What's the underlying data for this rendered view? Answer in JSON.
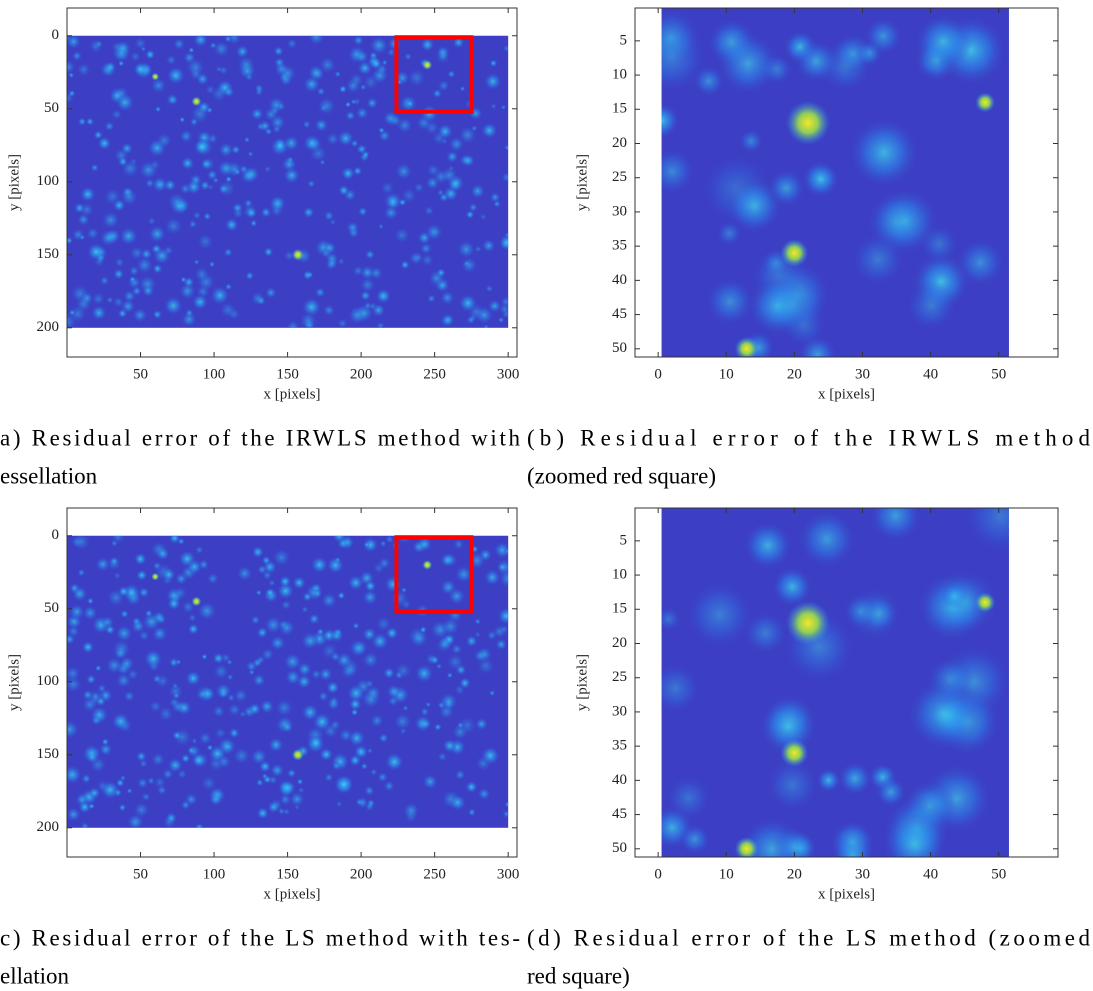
{
  "chart_data": [
    {
      "type": "heatmap",
      "xlabel": "x [pixels]",
      "ylabel": "y [pixels]",
      "xlim": [
        0,
        306
      ],
      "ylim": [
        -19,
        220
      ],
      "xticks": [
        50,
        100,
        150,
        200,
        250,
        300
      ],
      "yticks": [
        0,
        50,
        100,
        150,
        200
      ],
      "extent": {
        "x": [
          0,
          300
        ],
        "y": [
          0,
          200
        ]
      },
      "highlight": [
        224,
        1,
        275,
        52
      ],
      "highlight_color": "#ff0000",
      "color": "#3c3ec4",
      "caption": [
        "a) Residual error of the IRWLS method with",
        "essellation"
      ]
    },
    {
      "type": "heatmap",
      "xlabel": "x [pixels]",
      "ylabel": "y [pixels]",
      "xlim": [
        -3.4,
        58.7
      ],
      "ylim": [
        0.2,
        51.2
      ],
      "xticks": [
        0,
        10,
        20,
        30,
        40,
        50
      ],
      "yticks": [
        5,
        10,
        15,
        20,
        25,
        30,
        35,
        40,
        45,
        50
      ],
      "extent": {
        "x": [
          0.5,
          51.5
        ],
        "y": [
          0.2,
          51.2
        ]
      },
      "color": "#3c3ec4",
      "caption": [
        "(b) Residual error of the IRWLS method",
        "(zoomed red square)"
      ]
    },
    {
      "type": "heatmap",
      "xlabel": "x [pixels]",
      "ylabel": "y [pixels]",
      "xlim": [
        0,
        306
      ],
      "ylim": [
        -19,
        220
      ],
      "xticks": [
        50,
        100,
        150,
        200,
        250,
        300
      ],
      "yticks": [
        0,
        50,
        100,
        150,
        200
      ],
      "extent": {
        "x": [
          0,
          300
        ],
        "y": [
          0,
          200
        ]
      },
      "highlight": [
        224,
        1,
        275,
        52
      ],
      "highlight_color": "#ff0000",
      "color": "#3c3ec4",
      "caption": [
        "c) Residual error of the LS method with tes-",
        "ellation"
      ]
    },
    {
      "type": "heatmap",
      "xlabel": "x [pixels]",
      "ylabel": "y [pixels]",
      "xlim": [
        -3.4,
        58.7
      ],
      "ylim": [
        0.2,
        51.2
      ],
      "xticks": [
        0,
        10,
        20,
        30,
        40,
        50
      ],
      "yticks": [
        5,
        10,
        15,
        20,
        25,
        30,
        35,
        40,
        45,
        50
      ],
      "extent": {
        "x": [
          0.5,
          51.5
        ],
        "y": [
          0.2,
          51.2
        ]
      },
      "color": "#3c3ec4",
      "caption": [
        "(d) Residual error of the LS method (zoomed",
        "red square)"
      ]
    }
  ]
}
